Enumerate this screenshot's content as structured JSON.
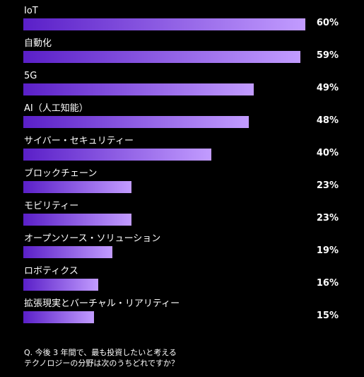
{
  "chart_data": {
    "type": "bar",
    "orientation": "horizontal",
    "categories": [
      "IoT",
      "自動化",
      "5G",
      "AI（人工知能）",
      "サイバー・セキュリティー",
      "ブロックチェーン",
      "モビリティー",
      "オープンソース・ソリューション",
      "ロボティクス",
      "拡張現実とバーチャル・リアリティー"
    ],
    "values": [
      60,
      59,
      49,
      48,
      40,
      23,
      23,
      19,
      16,
      15
    ],
    "value_labels": [
      "60%",
      "59%",
      "49%",
      "48%",
      "40%",
      "23%",
      "23%",
      "19%",
      "16%",
      "15%"
    ],
    "xlim": [
      0,
      60
    ],
    "grid": false,
    "legend": "none",
    "bar_gradient": [
      "#5a1fc8",
      "#c29cff"
    ]
  },
  "question": {
    "line1": "Q. 今後 3 年間で、最も投資したいと考える",
    "line2": "テクノロジーの分野は次のうちどれですか？"
  }
}
